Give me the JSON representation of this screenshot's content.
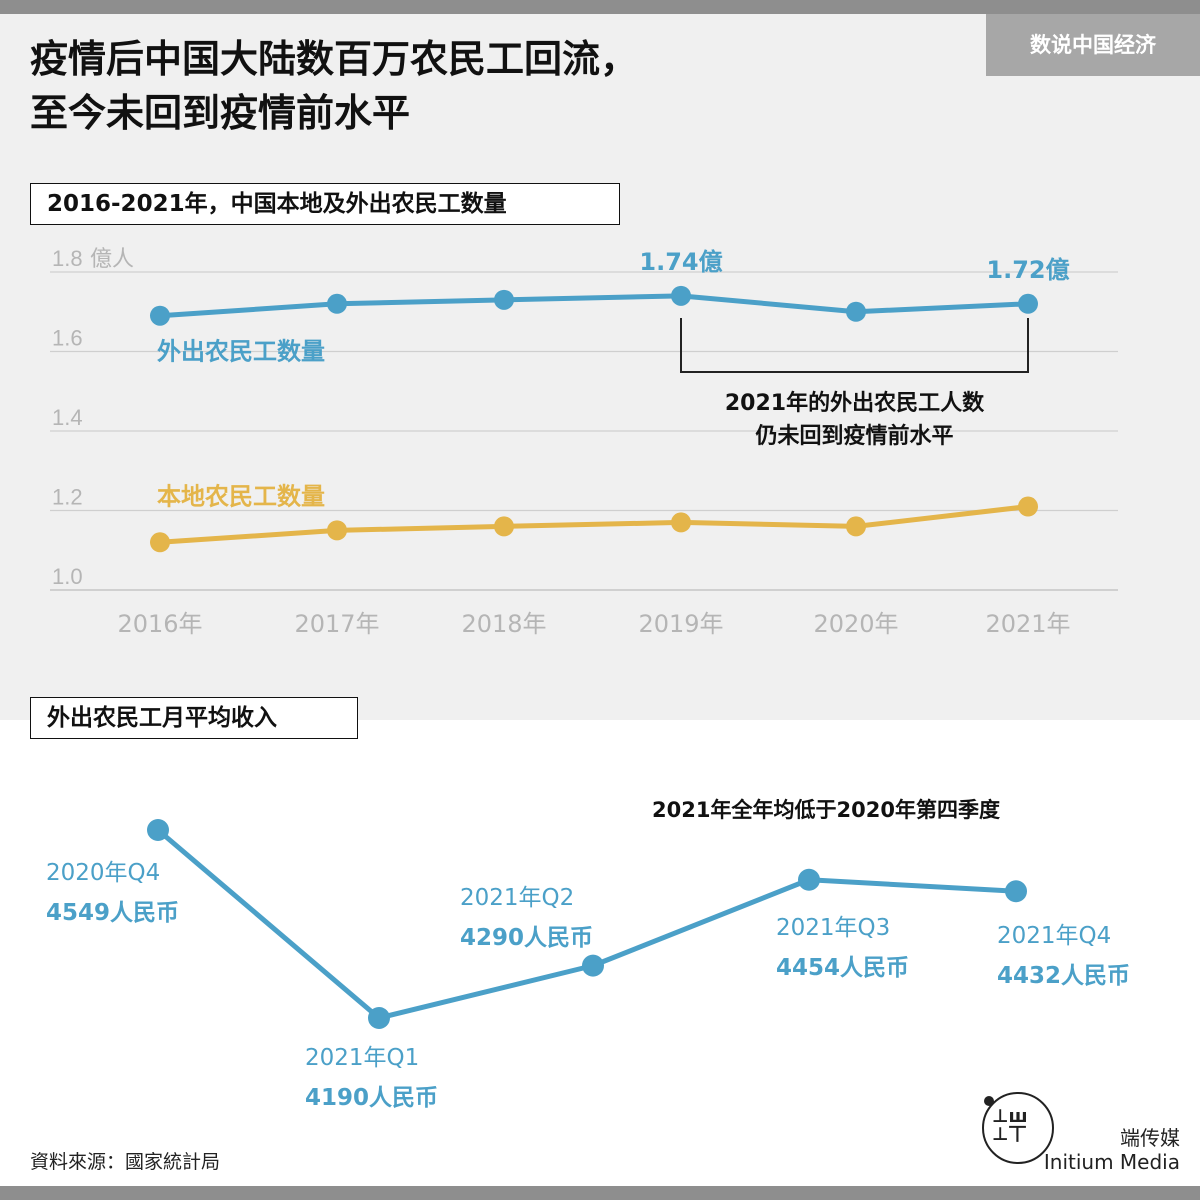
{
  "brand": "数说中国经济",
  "title": {
    "line1": "疫情后中国大陆数百万农民工回流，",
    "line2": "至今未回到疫情前水平"
  },
  "colors": {
    "migrant": "#4ba0c8",
    "local": "#e4b54a",
    "axis_text": "#b5b5b5",
    "grid": "#cfcfcf",
    "bg_gray": "#f0f0f0"
  },
  "chart_data": [
    {
      "type": "line",
      "title": "2016-2021年，中国本地及外出农民工数量",
      "categories": [
        "2016年",
        "2017年",
        "2018年",
        "2019年",
        "2020年",
        "2021年"
      ],
      "unit": "億人",
      "yticks": [
        "1.8",
        "1.6",
        "1.4",
        "1.2",
        "1.0"
      ],
      "ylim": [
        1.0,
        1.8
      ],
      "grid": true,
      "series": [
        {
          "name": "外出农民工数量",
          "color": "#4ba0c8",
          "values": [
            1.69,
            1.72,
            1.73,
            1.74,
            1.7,
            1.72
          ]
        },
        {
          "name": "本地农民工数量",
          "color": "#e4b54a",
          "values": [
            1.12,
            1.15,
            1.16,
            1.17,
            1.16,
            1.21
          ]
        }
      ],
      "point_labels": [
        {
          "series": 0,
          "index": 3,
          "text": "1.74億"
        },
        {
          "series": 0,
          "index": 5,
          "text": "1.72億"
        }
      ],
      "annotation": {
        "line1": "2021年的外出农民工人数",
        "line2": "仍未回到疫情前水平",
        "from_index": 3,
        "to_index": 5
      }
    },
    {
      "type": "line",
      "title": "外出农民工月平均收入",
      "categories": [
        "2020年Q4",
        "2021年Q1",
        "2021年Q2",
        "2021年Q3",
        "2021年Q4"
      ],
      "series": [
        {
          "name": "",
          "color": "#4ba0c8",
          "values": [
            4549,
            4190,
            4290,
            4454,
            4432
          ]
        }
      ],
      "value_labels": [
        "4549人民币",
        "4190人民币",
        "4290人民币",
        "4454人民币",
        "4432人民币"
      ],
      "annotation": "2021年全年均低于2020年第四季度"
    }
  ],
  "footer": {
    "source": "資料來源：國家統計局",
    "logo_cn": "端传媒",
    "logo_en": "Initium Media"
  }
}
